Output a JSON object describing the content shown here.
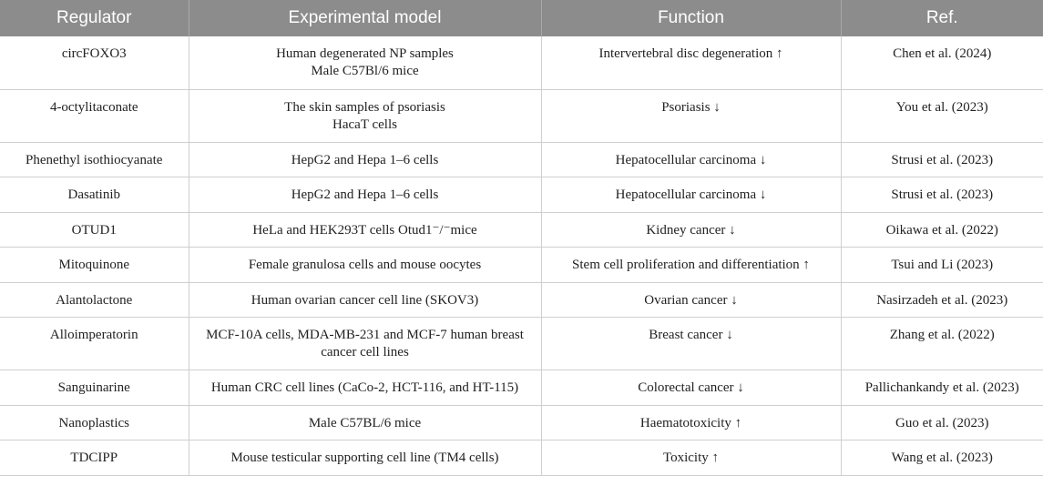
{
  "header": [
    "Regulator",
    "Experimental model",
    "Function",
    "Ref."
  ],
  "rows": [
    {
      "regulator": "circFOXO3",
      "model": [
        "Human degenerated NP samples",
        "Male C57Bl/6 mice"
      ],
      "function": "Intervertebral disc degeneration ↑",
      "ref": "Chen et al. (2024)"
    },
    {
      "regulator": "4-octylitaconate",
      "model": [
        "The skin samples of psoriasis",
        "HacaT cells"
      ],
      "function": "Psoriasis ↓",
      "ref": "You et al. (2023)"
    },
    {
      "regulator": "Phenethyl isothiocyanate",
      "model": [
        "HepG2 and Hepa 1–6 cells"
      ],
      "function": "Hepatocellular carcinoma ↓",
      "ref": "Strusi et al. (2023)"
    },
    {
      "regulator": "Dasatinib",
      "model": [
        "HepG2 and Hepa 1–6 cells"
      ],
      "function": "Hepatocellular carcinoma ↓",
      "ref": "Strusi et al. (2023)"
    },
    {
      "regulator": "OTUD1",
      "model": [
        "HeLa and HEK293T cells Otud1⁻/⁻mice"
      ],
      "function": "Kidney cancer ↓",
      "ref": "Oikawa et al. (2022)"
    },
    {
      "regulator": "Mitoquinone",
      "model": [
        "Female granulosa cells and mouse oocytes"
      ],
      "function": "Stem cell proliferation and differentiation ↑",
      "ref": "Tsui and Li (2023)"
    },
    {
      "regulator": "Alantolactone",
      "model": [
        "Human ovarian cancer cell line (SKOV3)"
      ],
      "function": "Ovarian cancer ↓",
      "ref": "Nasirzadeh et al. (2023)"
    },
    {
      "regulator": "Alloimperatorin",
      "model": [
        "MCF-10A cells, MDA-MB-231 and MCF-7 human breast",
        "cancer cell lines"
      ],
      "function": "Breast cancer ↓",
      "ref": "Zhang et al. (2022)"
    },
    {
      "regulator": "Sanguinarine",
      "model": [
        "Human CRC cell lines (CaCo-2, HCT-116, and HT-115)"
      ],
      "function": "Colorectal cancer ↓",
      "ref": "Pallichankandy et al. (2023)"
    },
    {
      "regulator": "Nanoplastics",
      "model": [
        "Male C57BL/6 mice"
      ],
      "function": "Haematotoxicity ↑",
      "ref": "Guo et al. (2023)"
    },
    {
      "regulator": "TDCIPP",
      "model": [
        "Mouse testicular supporting cell line (TM4 cells)"
      ],
      "function": "Toxicity ↑",
      "ref": "Wang et al. (2023)"
    }
  ]
}
